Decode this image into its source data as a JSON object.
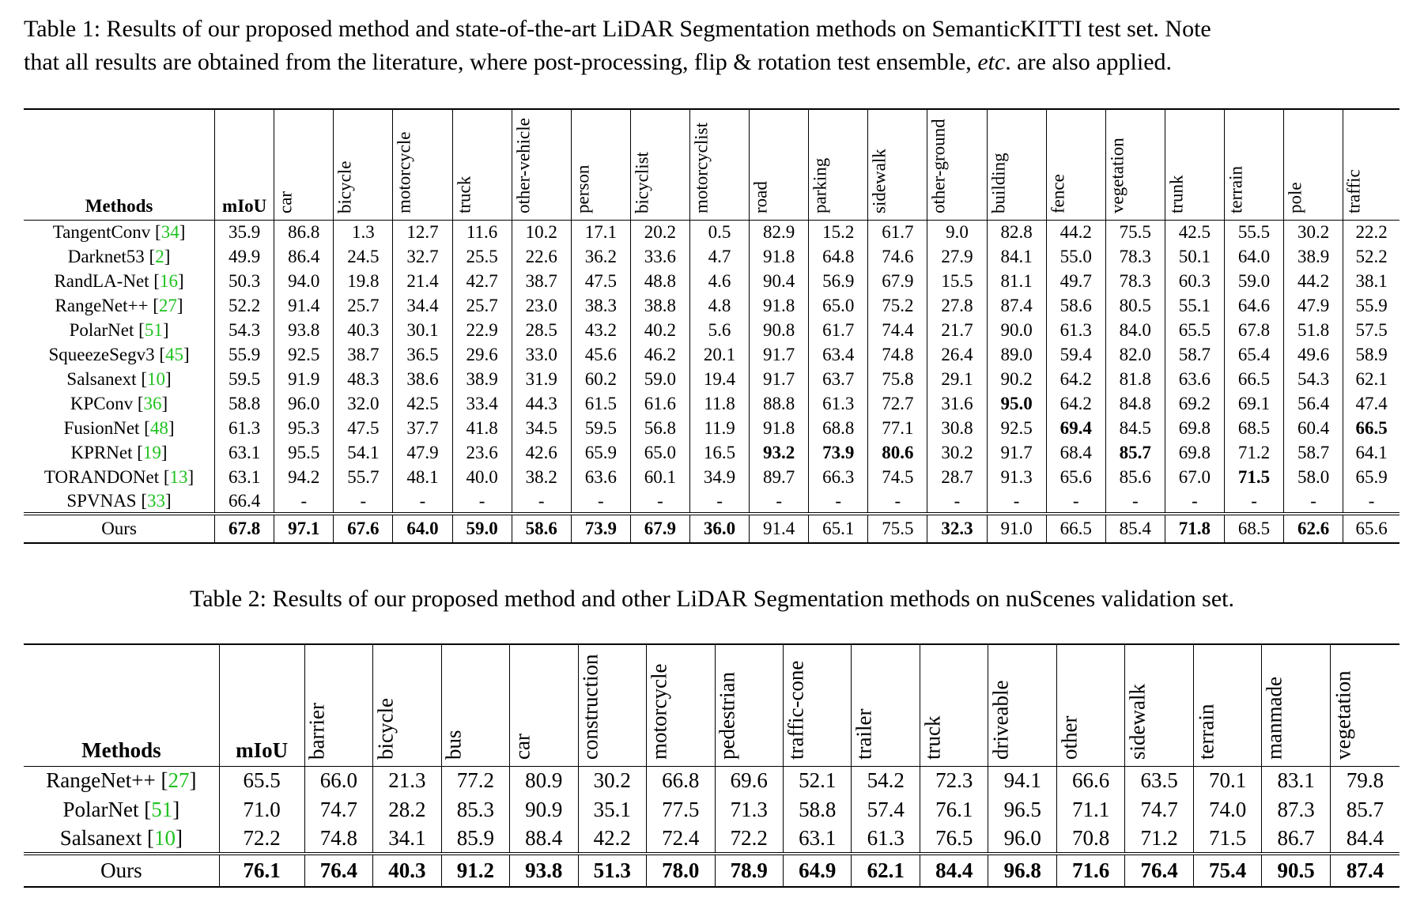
{
  "table1": {
    "caption": {
      "label": "Table 1:",
      "text1": "Results of our proposed method and state-of-the-art LiDAR Segmentation methods on SemanticKITTI test set. Note",
      "text2a": "that all results are obtained from the literature, where post-processing, flip & rotation test ensemble,",
      "text2_italic": "etc",
      "text2b": ". are also applied."
    },
    "headers": {
      "methods": "Methods",
      "miou": "mIoU",
      "classes": [
        "car",
        "bicycle",
        "motorcycle",
        "truck",
        "other-vehicle",
        "person",
        "bicyclist",
        "motorcyclist",
        "road",
        "parking",
        "sidewalk",
        "other-ground",
        "building",
        "fence",
        "vegetation",
        "trunk",
        "terrain",
        "pole",
        "traffic"
      ]
    },
    "rows": [
      {
        "name": "TangentConv",
        "ref": "34",
        "values": [
          "35.9",
          "86.8",
          "1.3",
          "12.7",
          "11.6",
          "10.2",
          "17.1",
          "20.2",
          "0.5",
          "82.9",
          "15.2",
          "61.7",
          "9.0",
          "82.8",
          "44.2",
          "75.5",
          "42.5",
          "55.5",
          "30.2",
          "22.2"
        ],
        "bold": []
      },
      {
        "name": "Darknet53",
        "ref": "2",
        "values": [
          "49.9",
          "86.4",
          "24.5",
          "32.7",
          "25.5",
          "22.6",
          "36.2",
          "33.6",
          "4.7",
          "91.8",
          "64.8",
          "74.6",
          "27.9",
          "84.1",
          "55.0",
          "78.3",
          "50.1",
          "64.0",
          "38.9",
          "52.2"
        ],
        "bold": []
      },
      {
        "name": "RandLA-Net",
        "ref": "16",
        "values": [
          "50.3",
          "94.0",
          "19.8",
          "21.4",
          "42.7",
          "38.7",
          "47.5",
          "48.8",
          "4.6",
          "90.4",
          "56.9",
          "67.9",
          "15.5",
          "81.1",
          "49.7",
          "78.3",
          "60.3",
          "59.0",
          "44.2",
          "38.1"
        ],
        "bold": []
      },
      {
        "name": "RangeNet++",
        "ref": "27",
        "values": [
          "52.2",
          "91.4",
          "25.7",
          "34.4",
          "25.7",
          "23.0",
          "38.3",
          "38.8",
          "4.8",
          "91.8",
          "65.0",
          "75.2",
          "27.8",
          "87.4",
          "58.6",
          "80.5",
          "55.1",
          "64.6",
          "47.9",
          "55.9"
        ],
        "bold": []
      },
      {
        "name": "PolarNet",
        "ref": "51",
        "values": [
          "54.3",
          "93.8",
          "40.3",
          "30.1",
          "22.9",
          "28.5",
          "43.2",
          "40.2",
          "5.6",
          "90.8",
          "61.7",
          "74.4",
          "21.7",
          "90.0",
          "61.3",
          "84.0",
          "65.5",
          "67.8",
          "51.8",
          "57.5"
        ],
        "bold": []
      },
      {
        "name": "SqueezeSegv3",
        "ref": "45",
        "values": [
          "55.9",
          "92.5",
          "38.7",
          "36.5",
          "29.6",
          "33.0",
          "45.6",
          "46.2",
          "20.1",
          "91.7",
          "63.4",
          "74.8",
          "26.4",
          "89.0",
          "59.4",
          "82.0",
          "58.7",
          "65.4",
          "49.6",
          "58.9"
        ],
        "bold": []
      },
      {
        "name": "Salsanext",
        "ref": "10",
        "values": [
          "59.5",
          "91.9",
          "48.3",
          "38.6",
          "38.9",
          "31.9",
          "60.2",
          "59.0",
          "19.4",
          "91.7",
          "63.7",
          "75.8",
          "29.1",
          "90.2",
          "64.2",
          "81.8",
          "63.6",
          "66.5",
          "54.3",
          "62.1"
        ],
        "bold": []
      },
      {
        "name": "KPConv",
        "ref": "36",
        "values": [
          "58.8",
          "96.0",
          "32.0",
          "42.5",
          "33.4",
          "44.3",
          "61.5",
          "61.6",
          "11.8",
          "88.8",
          "61.3",
          "72.7",
          "31.6",
          "95.0",
          "64.2",
          "84.8",
          "69.2",
          "69.1",
          "56.4",
          "47.4"
        ],
        "bold": [
          13
        ]
      },
      {
        "name": "FusionNet",
        "ref": "48",
        "values": [
          "61.3",
          "95.3",
          "47.5",
          "37.7",
          "41.8",
          "34.5",
          "59.5",
          "56.8",
          "11.9",
          "91.8",
          "68.8",
          "77.1",
          "30.8",
          "92.5",
          "69.4",
          "84.5",
          "69.8",
          "68.5",
          "60.4",
          "66.5"
        ],
        "bold": [
          14,
          19
        ]
      },
      {
        "name": "KPRNet",
        "ref": "19",
        "values": [
          "63.1",
          "95.5",
          "54.1",
          "47.9",
          "23.6",
          "42.6",
          "65.9",
          "65.0",
          "16.5",
          "93.2",
          "73.9",
          "80.6",
          "30.2",
          "91.7",
          "68.4",
          "85.7",
          "69.8",
          "71.2",
          "58.7",
          "64.1"
        ],
        "bold": [
          9,
          10,
          11,
          15
        ]
      },
      {
        "name": "TORANDONet",
        "ref": "13",
        "values": [
          "63.1",
          "94.2",
          "55.7",
          "48.1",
          "40.0",
          "38.2",
          "63.6",
          "60.1",
          "34.9",
          "89.7",
          "66.3",
          "74.5",
          "28.7",
          "91.3",
          "65.6",
          "85.6",
          "67.0",
          "71.5",
          "58.0",
          "65.9"
        ],
        "bold": [
          17
        ]
      },
      {
        "name": "SPVNAS",
        "ref": "33",
        "values": [
          "66.4",
          "-",
          "-",
          "-",
          "-",
          "-",
          "-",
          "-",
          "-",
          "-",
          "-",
          "-",
          "-",
          "-",
          "-",
          "-",
          "-",
          "-",
          "-",
          "-"
        ],
        "bold": []
      }
    ],
    "ours": {
      "name": "Ours",
      "values": [
        "67.8",
        "97.1",
        "67.6",
        "64.0",
        "59.0",
        "58.6",
        "73.9",
        "67.9",
        "36.0",
        "91.4",
        "65.1",
        "75.5",
        "32.3",
        "91.0",
        "66.5",
        "85.4",
        "71.8",
        "68.5",
        "62.6",
        "65.6"
      ],
      "bold": [
        0,
        1,
        2,
        3,
        4,
        5,
        6,
        7,
        8,
        12,
        16,
        18
      ]
    }
  },
  "table2": {
    "caption": {
      "label": "Table 2:",
      "text": "Results of our proposed method and other LiDAR Segmentation methods on nuScenes validation set."
    },
    "headers": {
      "methods": "Methods",
      "miou": "mIoU",
      "classes": [
        "barrier",
        "bicycle",
        "bus",
        "car",
        "construction",
        "motorcycle",
        "pedestrian",
        "traffic-cone",
        "trailer",
        "truck",
        "driveable",
        "other",
        "sidewalk",
        "terrain",
        "manmade",
        "vegetation"
      ]
    },
    "rows": [
      {
        "name": "RangeNet++",
        "ref": "27",
        "values": [
          "65.5",
          "66.0",
          "21.3",
          "77.2",
          "80.9",
          "30.2",
          "66.8",
          "69.6",
          "52.1",
          "54.2",
          "72.3",
          "94.1",
          "66.6",
          "63.5",
          "70.1",
          "83.1",
          "79.8"
        ],
        "bold": []
      },
      {
        "name": "PolarNet",
        "ref": "51",
        "values": [
          "71.0",
          "74.7",
          "28.2",
          "85.3",
          "90.9",
          "35.1",
          "77.5",
          "71.3",
          "58.8",
          "57.4",
          "76.1",
          "96.5",
          "71.1",
          "74.7",
          "74.0",
          "87.3",
          "85.7"
        ],
        "bold": []
      },
      {
        "name": "Salsanext",
        "ref": "10",
        "values": [
          "72.2",
          "74.8",
          "34.1",
          "85.9",
          "88.4",
          "42.2",
          "72.4",
          "72.2",
          "63.1",
          "61.3",
          "76.5",
          "96.0",
          "70.8",
          "71.2",
          "71.5",
          "86.7",
          "84.4"
        ],
        "bold": []
      }
    ],
    "ours": {
      "name": "Ours",
      "values": [
        "76.1",
        "76.4",
        "40.3",
        "91.2",
        "93.8",
        "51.3",
        "78.0",
        "78.9",
        "64.9",
        "62.1",
        "84.4",
        "96.8",
        "71.6",
        "76.4",
        "75.4",
        "90.5",
        "87.4"
      ],
      "bold": [
        0,
        1,
        2,
        3,
        4,
        5,
        6,
        7,
        8,
        9,
        10,
        11,
        12,
        13,
        14,
        15,
        16
      ]
    }
  }
}
